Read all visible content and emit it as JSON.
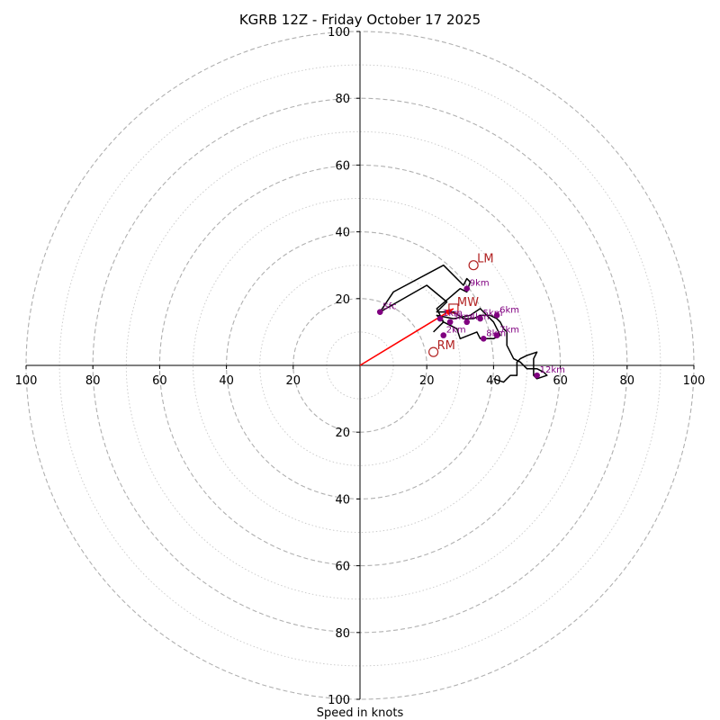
{
  "chart_data": {
    "type": "hodograph",
    "title": "KGRB 12Z - Friday October 17 2025",
    "xlabel": "Speed in knots",
    "xlim": [
      -100,
      100
    ],
    "ylim": [
      -100,
      100
    ],
    "rings_major": [
      20,
      40,
      60,
      80,
      100
    ],
    "rings_minor": [
      10,
      30,
      50,
      70,
      90
    ],
    "x_ticks": [
      -100,
      -80,
      -60,
      -40,
      -20,
      20,
      40,
      60,
      80,
      100
    ],
    "x_tick_labels": [
      "100",
      "80",
      "60",
      "40",
      "20",
      "20",
      "40",
      "60",
      "80",
      "100"
    ],
    "y_ticks": [
      100,
      80,
      60,
      40,
      20,
      -20,
      -40,
      -60,
      -80,
      -100
    ],
    "y_tick_labels": [
      "100",
      "80",
      "60",
      "40",
      "20",
      "20",
      "40",
      "60",
      "80",
      "100"
    ],
    "trace": [
      [
        22,
        10
      ],
      [
        25,
        13
      ],
      [
        23,
        15
      ],
      [
        28,
        14
      ],
      [
        33,
        15
      ],
      [
        36,
        17
      ],
      [
        38,
        15
      ],
      [
        40,
        13
      ],
      [
        41,
        11
      ],
      [
        42,
        9
      ],
      [
        40,
        8
      ],
      [
        36,
        8
      ],
      [
        35,
        10
      ],
      [
        30,
        8
      ],
      [
        29,
        11
      ],
      [
        25,
        13
      ],
      [
        23,
        17
      ],
      [
        30,
        23
      ],
      [
        32,
        22
      ],
      [
        33,
        25
      ],
      [
        32,
        26
      ],
      [
        31,
        24
      ],
      [
        25,
        30
      ],
      [
        10,
        22
      ],
      [
        6,
        16
      ],
      [
        20,
        24
      ],
      [
        26,
        19
      ],
      [
        23,
        16
      ],
      [
        28,
        16
      ],
      [
        31,
        14
      ],
      [
        34,
        14
      ],
      [
        36,
        15
      ],
      [
        39,
        15
      ],
      [
        41,
        14
      ],
      [
        42,
        13
      ],
      [
        43,
        11
      ],
      [
        44,
        10
      ],
      [
        44,
        8
      ],
      [
        44,
        6
      ],
      [
        45,
        4
      ],
      [
        46,
        2
      ],
      [
        48,
        1
      ],
      [
        50,
        -1
      ],
      [
        53,
        -1
      ],
      [
        55,
        -2
      ],
      [
        56,
        -3
      ],
      [
        53,
        -4
      ],
      [
        52,
        -3
      ],
      [
        52,
        -1
      ],
      [
        52,
        2
      ],
      [
        53,
        4
      ],
      [
        50,
        3
      ],
      [
        48,
        2
      ],
      [
        47,
        1
      ],
      [
        47,
        -3
      ],
      [
        45,
        -3
      ],
      [
        44,
        -4
      ],
      [
        43,
        -5
      ],
      [
        40,
        -4
      ]
    ],
    "height_markers": [
      {
        "label": "Sfc",
        "u": 6,
        "v": 16
      },
      {
        "label": "1km",
        "u": 24,
        "v": 14
      },
      {
        "label": "2km",
        "u": 25,
        "v": 9
      },
      {
        "label": "3km",
        "u": 27,
        "v": 13
      },
      {
        "label": "4km",
        "u": 32,
        "v": 13
      },
      {
        "label": "5km",
        "u": 36,
        "v": 14
      },
      {
        "label": "6km",
        "u": 41,
        "v": 15
      },
      {
        "label": "7km",
        "u": 41,
        "v": 9
      },
      {
        "label": "8km",
        "u": 37,
        "v": 8
      },
      {
        "label": "9km",
        "u": 32,
        "v": 23
      },
      {
        "label": "12km",
        "u": 53,
        "v": -3
      }
    ],
    "storm_motion": [
      {
        "label": "LM",
        "u": 34,
        "v": 30,
        "marker": "circle"
      },
      {
        "label": "MW",
        "u": 28,
        "v": 17,
        "marker": "square"
      },
      {
        "label": "RM",
        "u": 22,
        "v": 4,
        "marker": "circle"
      }
    ],
    "shear_vector": {
      "from": [
        0,
        0
      ],
      "to": [
        28,
        17
      ]
    },
    "colors": {
      "trace": "#000000",
      "markers": "#800080",
      "storm_labels": "#b22222",
      "shear_vector": "#ff0000",
      "grid": "#b0b0b0"
    }
  }
}
